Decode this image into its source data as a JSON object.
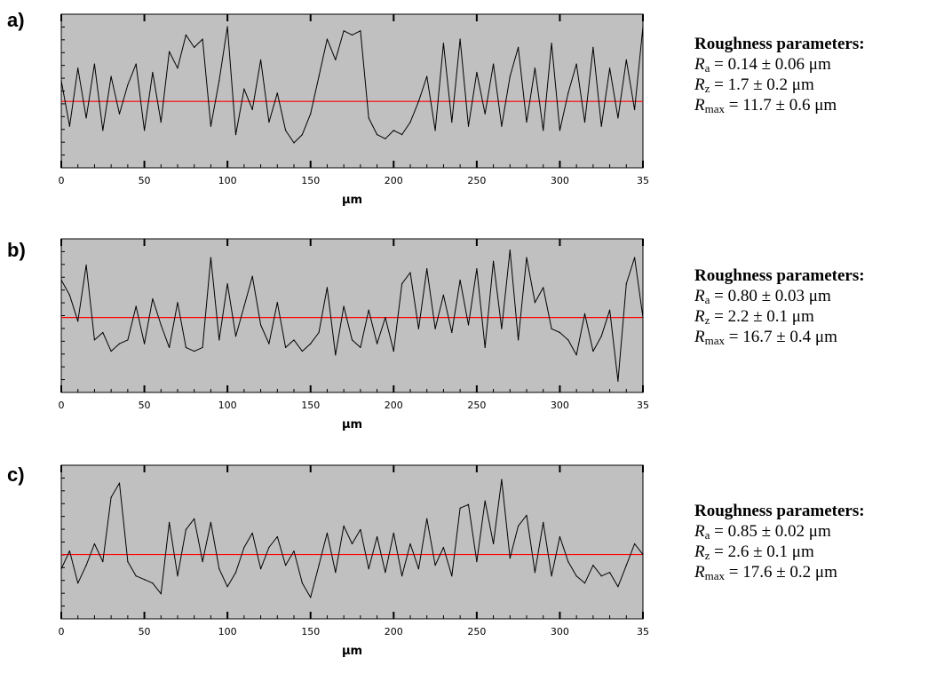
{
  "chart_data": [
    {
      "type": "line",
      "panel_label": "a)",
      "xlabel": "μm",
      "xlim": [
        0,
        350
      ],
      "x_ticks": [
        "0",
        "50",
        "100",
        "150",
        "200",
        "250",
        "300",
        "35"
      ],
      "grid": false,
      "background": "#c0c0c0",
      "reference_line_color": "#ff0000",
      "series_color": "#000000",
      "x": [
        0,
        5,
        10,
        15,
        20,
        25,
        30,
        35,
        40,
        45,
        50,
        55,
        60,
        65,
        70,
        75,
        80,
        85,
        90,
        95,
        100,
        105,
        110,
        115,
        120,
        125,
        130,
        135,
        140,
        145,
        150,
        155,
        160,
        165,
        170,
        175,
        180,
        185,
        190,
        195,
        200,
        205,
        210,
        215,
        220,
        225,
        230,
        235,
        240,
        245,
        250,
        255,
        260,
        265,
        270,
        275,
        280,
        285,
        290,
        295,
        300,
        305,
        310,
        315,
        320,
        325,
        330,
        335,
        340,
        345,
        350
      ],
      "y": [
        0.5,
        -0.6,
        0.8,
        -0.4,
        0.9,
        -0.7,
        0.6,
        -0.3,
        0.4,
        0.9,
        -0.7,
        0.7,
        -0.5,
        1.2,
        0.8,
        1.6,
        1.3,
        1.5,
        -0.6,
        0.5,
        1.8,
        -0.8,
        0.3,
        -0.2,
        1.0,
        -0.5,
        0.2,
        -0.7,
        -1.0,
        -0.8,
        -0.3,
        0.6,
        1.5,
        1.0,
        1.7,
        1.6,
        1.7,
        -0.4,
        -0.8,
        -0.9,
        -0.7,
        -0.8,
        -0.5,
        0.0,
        0.6,
        -0.7,
        1.4,
        -0.5,
        1.5,
        -0.6,
        0.7,
        -0.3,
        0.9,
        -0.6,
        0.6,
        1.3,
        -0.5,
        0.8,
        -0.7,
        1.4,
        -0.7,
        0.2,
        0.9,
        -0.5,
        1.3,
        -0.6,
        0.8,
        -0.4,
        1.0,
        -0.2,
        1.8
      ],
      "ylim": [
        -1.6,
        2.1
      ],
      "reference_y": 0
    },
    {
      "type": "line",
      "panel_label": "b)",
      "xlabel": "μm",
      "xlim": [
        0,
        350
      ],
      "x_ticks": [
        "0",
        "50",
        "100",
        "150",
        "200",
        "250",
        "300",
        "35"
      ],
      "grid": false,
      "background": "#c0c0c0",
      "reference_line_color": "#ff0000",
      "series_color": "#000000",
      "x": [
        0,
        5,
        10,
        15,
        20,
        25,
        30,
        35,
        40,
        45,
        50,
        55,
        60,
        65,
        70,
        75,
        80,
        85,
        90,
        95,
        100,
        105,
        110,
        115,
        120,
        125,
        130,
        135,
        140,
        145,
        150,
        155,
        160,
        165,
        170,
        175,
        180,
        185,
        190,
        195,
        200,
        205,
        210,
        215,
        220,
        225,
        230,
        235,
        240,
        245,
        250,
        255,
        260,
        265,
        270,
        275,
        280,
        285,
        290,
        295,
        300,
        305,
        310,
        315,
        320,
        325,
        330,
        335,
        340,
        345,
        350
      ],
      "y": [
        1.0,
        0.6,
        -0.1,
        1.4,
        -0.6,
        -0.4,
        -0.9,
        -0.7,
        -0.6,
        0.3,
        -0.7,
        0.5,
        -0.2,
        -0.8,
        0.4,
        -0.8,
        -0.9,
        -0.8,
        1.6,
        -0.6,
        0.9,
        -0.5,
        0.3,
        1.1,
        -0.2,
        -0.7,
        0.4,
        -0.8,
        -0.6,
        -0.9,
        -0.7,
        -0.4,
        0.8,
        -1.0,
        0.3,
        -0.6,
        -0.8,
        0.2,
        -0.7,
        0.0,
        -0.9,
        0.9,
        1.2,
        -0.3,
        1.3,
        -0.3,
        0.6,
        -0.4,
        1.0,
        -0.2,
        1.3,
        -0.8,
        1.5,
        -0.3,
        1.8,
        -0.6,
        1.6,
        0.4,
        0.8,
        -0.3,
        -0.4,
        -0.6,
        -1.0,
        0.1,
        -0.9,
        -0.5,
        0.2,
        -1.7,
        0.9,
        1.6,
        0.0
      ],
      "ylim": [
        -2.0,
        2.1
      ],
      "reference_y": 0
    },
    {
      "type": "line",
      "panel_label": "c)",
      "xlabel": "μm",
      "xlim": [
        0,
        350
      ],
      "x_ticks": [
        "0",
        "50",
        "100",
        "150",
        "200",
        "250",
        "300",
        "35"
      ],
      "grid": false,
      "background": "#c0c0c0",
      "reference_line_color": "#ff0000",
      "series_color": "#000000",
      "x": [
        0,
        5,
        10,
        15,
        20,
        25,
        30,
        35,
        40,
        45,
        50,
        55,
        60,
        65,
        70,
        75,
        80,
        85,
        90,
        95,
        100,
        105,
        110,
        115,
        120,
        125,
        130,
        135,
        140,
        145,
        150,
        155,
        160,
        165,
        170,
        175,
        180,
        185,
        190,
        195,
        200,
        205,
        210,
        215,
        220,
        225,
        230,
        235,
        240,
        245,
        250,
        255,
        260,
        265,
        270,
        275,
        280,
        285,
        290,
        295,
        300,
        305,
        310,
        315,
        320,
        325,
        330,
        335,
        340,
        345,
        350
      ],
      "y": [
        -0.4,
        0.1,
        -0.8,
        -0.3,
        0.3,
        -0.2,
        1.6,
        2.0,
        -0.2,
        -0.6,
        -0.7,
        -0.8,
        -1.1,
        0.9,
        -0.6,
        0.7,
        1.0,
        -0.2,
        0.9,
        -0.4,
        -0.9,
        -0.5,
        0.2,
        0.6,
        -0.4,
        0.2,
        0.5,
        -0.3,
        0.1,
        -0.8,
        -1.2,
        -0.3,
        0.6,
        -0.5,
        0.8,
        0.3,
        0.7,
        -0.4,
        0.5,
        -0.5,
        0.6,
        -0.6,
        0.3,
        -0.4,
        1.0,
        -0.3,
        0.2,
        -0.6,
        1.3,
        1.4,
        -0.2,
        1.5,
        0.3,
        2.1,
        -0.1,
        0.8,
        1.1,
        -0.5,
        0.9,
        -0.6,
        0.5,
        -0.2,
        -0.6,
        -0.8,
        -0.3,
        -0.6,
        -0.5,
        -0.9,
        -0.3,
        0.3,
        0.0
      ],
      "ylim": [
        -1.8,
        2.5
      ],
      "reference_y": 0
    }
  ],
  "params": [
    {
      "title": "Roughness parameters:",
      "ra_sym": "R",
      "ra_sub": "a",
      "ra_val": " = 0.14 ± 0.06 μm",
      "rz_sym": "R",
      "rz_sub": "z",
      "rz_val": " = 1.7 ± 0.2 μm",
      "rmax_sym": "R",
      "rmax_sub": "max",
      "rmax_val": " = 11.7 ± 0.6 μm"
    },
    {
      "title": "Roughness parameters:",
      "ra_sym": "R",
      "ra_sub": "a",
      "ra_val": " = 0.80 ± 0.03 μm",
      "rz_sym": "R",
      "rz_sub": "z",
      "rz_val": " = 2.2 ± 0.1 μm",
      "rmax_sym": "R",
      "rmax_sub": "max",
      "rmax_val": " = 16.7 ± 0.4 μm"
    },
    {
      "title": "Roughness parameters:",
      "ra_sym": "R",
      "ra_sub": "a",
      "ra_val": " = 0.85 ± 0.02 μm",
      "rz_sym": "R",
      "rz_sub": "z",
      "rz_val": " = 2.6 ± 0.1 μm",
      "rmax_sym": "R",
      "rmax_sub": "max",
      "rmax_val": " = 17.6 ± 0.2 μm"
    }
  ]
}
